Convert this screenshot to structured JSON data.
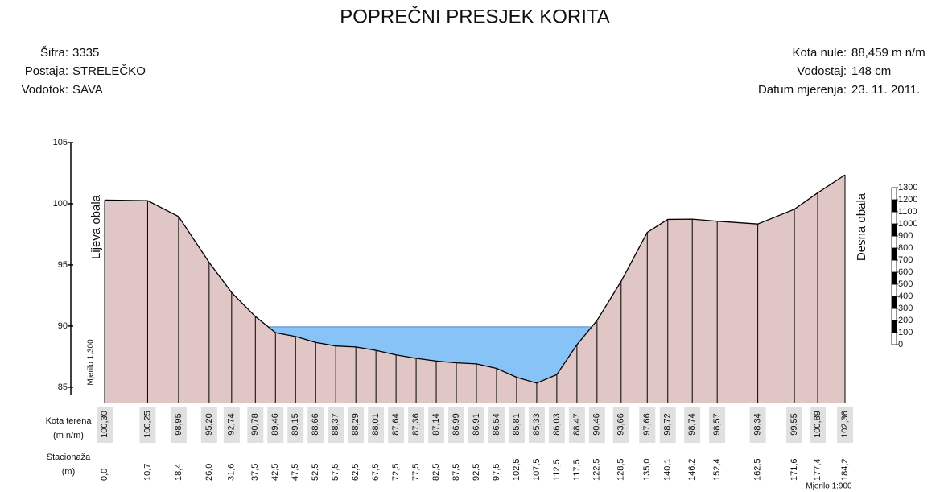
{
  "header": {
    "title": "POPREČNI PRESJEK KORITA",
    "left": [
      [
        "Šifra:",
        "3335"
      ],
      [
        "Postaja:",
        "STRELEČKO"
      ],
      [
        "Vodotok:",
        "SAVA"
      ]
    ],
    "right": [
      [
        "Kota nule:",
        "88,459 m n/m"
      ],
      [
        "Vodostaj:",
        "148 cm"
      ],
      [
        "Datum mjerenja:",
        "23. 11. 2011."
      ]
    ]
  },
  "chart_data": {
    "type": "area",
    "x": [
      0,
      10.7,
      18.4,
      26.0,
      31.6,
      37.5,
      42.5,
      47.5,
      52.5,
      57.5,
      62.5,
      67.5,
      72.5,
      77.5,
      82.5,
      87.5,
      92.5,
      97.5,
      102.5,
      107.5,
      112.5,
      117.5,
      122.5,
      128.5,
      135.0,
      140.1,
      146.2,
      152.4,
      162.5,
      171.6,
      177.4,
      184.2
    ],
    "xticks": [
      {
        "value": 0,
        "label": "0,0"
      },
      {
        "value": 10.7,
        "label": "10,7"
      },
      {
        "value": 18.4,
        "label": "18,4"
      },
      {
        "value": 26.0,
        "label": "26,0"
      },
      {
        "value": 31.6,
        "label": "31,6"
      },
      {
        "value": 37.5,
        "label": "37,5"
      },
      {
        "value": 42.5,
        "label": "42,5"
      },
      {
        "value": 47.5,
        "label": "47,5"
      },
      {
        "value": 52.5,
        "label": "52,5"
      },
      {
        "value": 57.5,
        "label": "57,5"
      },
      {
        "value": 62.5,
        "label": "62,5"
      },
      {
        "value": 67.5,
        "label": "67,5"
      },
      {
        "value": 72.5,
        "label": "72,5"
      },
      {
        "value": 77.5,
        "label": "77,5"
      },
      {
        "value": 82.5,
        "label": "82,5"
      },
      {
        "value": 87.5,
        "label": "87,5"
      },
      {
        "value": 92.5,
        "label": "92,5"
      },
      {
        "value": 97.5,
        "label": "97,5"
      },
      {
        "value": 102.5,
        "label": "102,5"
      },
      {
        "value": 107.5,
        "label": "107,5"
      },
      {
        "value": 112.5,
        "label": "112,5"
      },
      {
        "value": 117.5,
        "label": "117,5"
      },
      {
        "value": 122.5,
        "label": "122,5"
      },
      {
        "value": 128.5,
        "label": "128,5"
      },
      {
        "value": 135.0,
        "label": "135,0"
      },
      {
        "value": 140.1,
        "label": "140,1"
      },
      {
        "value": 146.2,
        "label": "146,2"
      },
      {
        "value": 152.4,
        "label": "152,4"
      },
      {
        "value": 162.5,
        "label": "162,5"
      },
      {
        "value": 171.6,
        "label": "171,6"
      },
      {
        "value": 177.4,
        "label": "177,4"
      },
      {
        "value": 184.2,
        "label": "184,2"
      }
    ],
    "series": [
      {
        "color": "#e1c6c6",
        "values": [
          100.3,
          100.25,
          98.95,
          95.2,
          92.74,
          90.78,
          89.46,
          89.15,
          88.66,
          88.37,
          88.29,
          88.01,
          87.64,
          87.36,
          87.14,
          86.99,
          86.91,
          86.54,
          85.81,
          85.33,
          86.03,
          88.47,
          90.46,
          93.66,
          97.66,
          98.72,
          98.74,
          98.57,
          98.34,
          99.55,
          100.89,
          102.36
        ],
        "value_labels": [
          "100,30",
          "100,25",
          "98,95",
          "95,20",
          "92,74",
          "90,78",
          "89,46",
          "89,15",
          "88,66",
          "88,37",
          "88,29",
          "88,01",
          "87,64",
          "87,36",
          "87,14",
          "86,99",
          "86,91",
          "86,54",
          "85,81",
          "85,33",
          "86,03",
          "88,47",
          "90,46",
          "93,66",
          "97,66",
          "98,72",
          "98,74",
          "98,57",
          "98,34",
          "99,55",
          "100,89",
          "102,36"
        ]
      }
    ],
    "water_level": 89.94,
    "water_color": "#87c3f7",
    "xlim": [
      0,
      184.2
    ],
    "ylim": [
      84.4,
      105
    ],
    "yticks": [
      85,
      90,
      95,
      100,
      105
    ],
    "left_bank": "Lijeva obala",
    "right_bank": "Desna obala",
    "vertical_scale": "Mjerilo 1:300",
    "horizontal_scale": "Mjerilo 1:900",
    "row_labels": [
      [
        "Kota terena",
        "(m n/m)"
      ],
      [
        "Stacionaža",
        "(m)"
      ]
    ],
    "scale_ticks": [
      0,
      100,
      200,
      300,
      400,
      500,
      600,
      700,
      800,
      900,
      1000,
      1100,
      1200,
      1300
    ]
  }
}
